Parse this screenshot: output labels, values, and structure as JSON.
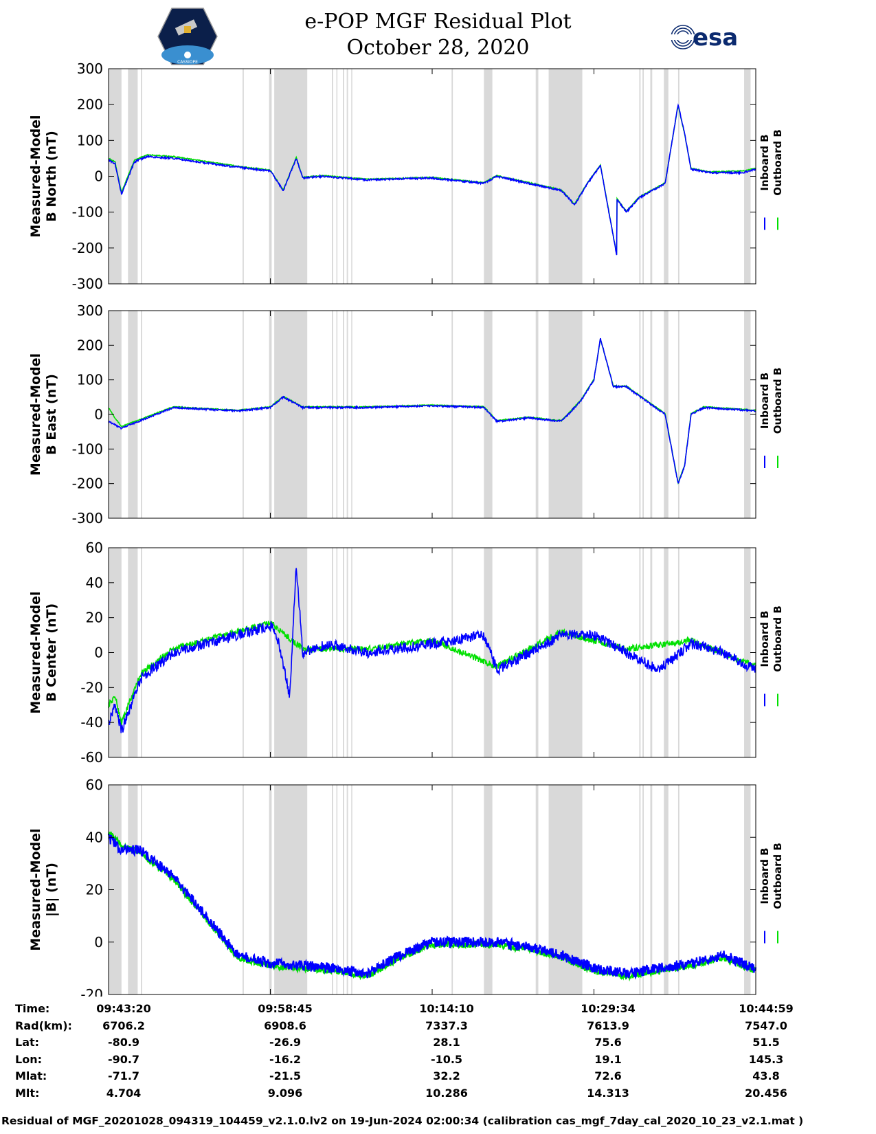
{
  "header": {
    "title_line1": "e-POP MGF Residual Plot",
    "title_line2": "October 28, 2020",
    "logo_left_text": "CASSIOPE",
    "logo_right_text": "esa"
  },
  "colors": {
    "inboard": "#0000ff",
    "outboard": "#00e000",
    "gap": "#d9d9d9"
  },
  "chart_data": [
    {
      "type": "line",
      "name": "b-north",
      "ylabel": [
        "Measured-Model",
        "B North (nT)"
      ],
      "ylim": [
        -300,
        300
      ],
      "yticks": [
        300,
        200,
        100,
        0,
        -100,
        -200,
        -300
      ],
      "legend": [
        "Inboard B",
        "Outboard B"
      ],
      "series": [
        {
          "name": "Inboard B",
          "x": [
            0,
            0.01,
            0.02,
            0.04,
            0.06,
            0.1,
            0.2,
            0.25,
            0.27,
            0.29,
            0.3,
            0.33,
            0.4,
            0.5,
            0.58,
            0.6,
            0.7,
            0.72,
            0.74,
            0.76,
            0.785,
            0.78,
            0.8,
            0.82,
            0.86,
            0.88,
            0.89,
            0.9,
            0.93,
            0.98,
            1
          ],
          "y": [
            45,
            35,
            -50,
            40,
            55,
            50,
            25,
            15,
            -40,
            50,
            -5,
            0,
            -10,
            -5,
            -20,
            0,
            -40,
            -80,
            -20,
            30,
            -220,
            -50,
            -100,
            -60,
            -20,
            200,
            120,
            20,
            10,
            10,
            20
          ]
        },
        {
          "name": "Outboard B",
          "x": [
            0,
            0.01,
            0.02,
            0.04,
            0.06,
            0.1,
            0.2,
            0.25,
            0.27,
            0.29,
            0.3,
            0.33,
            0.4,
            0.5,
            0.58,
            0.6,
            0.7,
            0.72,
            0.74,
            0.76,
            0.785,
            0.78,
            0.8,
            0.82,
            0.86,
            0.88,
            0.89,
            0.9,
            0.93,
            0.98,
            1
          ],
          "y": [
            50,
            40,
            -45,
            45,
            60,
            55,
            28,
            17,
            -38,
            52,
            -3,
            2,
            -8,
            -3,
            -18,
            2,
            -38,
            -78,
            -18,
            32,
            -218,
            -48,
            -98,
            -58,
            -18,
            198,
            118,
            22,
            12,
            15,
            22
          ]
        }
      ]
    },
    {
      "type": "line",
      "name": "b-east",
      "ylabel": [
        "Measured-Model",
        "B East (nT)"
      ],
      "ylim": [
        -300,
        300
      ],
      "yticks": [
        300,
        200,
        100,
        0,
        -100,
        -200,
        -300
      ],
      "legend": [
        "Inboard B",
        "Outboard B"
      ],
      "series": [
        {
          "name": "Inboard B",
          "x": [
            0,
            0.02,
            0.1,
            0.2,
            0.25,
            0.27,
            0.3,
            0.4,
            0.5,
            0.58,
            0.6,
            0.65,
            0.7,
            0.73,
            0.75,
            0.76,
            0.78,
            0.8,
            0.86,
            0.88,
            0.89,
            0.9,
            0.92,
            1
          ],
          "y": [
            -20,
            -40,
            20,
            10,
            20,
            50,
            20,
            20,
            25,
            20,
            -20,
            -10,
            -20,
            40,
            100,
            220,
            80,
            80,
            0,
            -200,
            -150,
            0,
            20,
            10
          ]
        },
        {
          "name": "Outboard B",
          "x": [
            0,
            0.01,
            0.02,
            0.1,
            0.2,
            0.25,
            0.27,
            0.3,
            0.4,
            0.5,
            0.58,
            0.6,
            0.65,
            0.7,
            0.73,
            0.75,
            0.76,
            0.78,
            0.8,
            0.86,
            0.88,
            0.89,
            0.9,
            0.92,
            1
          ],
          "y": [
            20,
            -10,
            -35,
            22,
            12,
            22,
            52,
            22,
            22,
            27,
            22,
            -18,
            -8,
            -18,
            42,
            102,
            218,
            82,
            82,
            2,
            -198,
            -148,
            2,
            22,
            12
          ]
        }
      ]
    },
    {
      "type": "line",
      "name": "b-center",
      "ylabel": [
        "Measured-Model",
        "B Center (nT)"
      ],
      "ylim": [
        -60,
        60
      ],
      "yticks": [
        60,
        40,
        20,
        0,
        -20,
        -40,
        -60
      ],
      "legend": [
        "Inboard B",
        "Outboard B"
      ],
      "series": [
        {
          "name": "Inboard B",
          "x": [
            0,
            0.01,
            0.02,
            0.05,
            0.1,
            0.15,
            0.2,
            0.25,
            0.26,
            0.28,
            0.29,
            0.3,
            0.34,
            0.4,
            0.5,
            0.58,
            0.6,
            0.7,
            0.75,
            0.8,
            0.85,
            0.9,
            0.95,
            1
          ],
          "y": [
            -40,
            -30,
            -45,
            -15,
            0,
            5,
            10,
            15,
            10,
            -25,
            50,
            0,
            5,
            0,
            5,
            10,
            -10,
            10,
            10,
            0,
            -10,
            5,
            0,
            -10
          ]
        },
        {
          "name": "Outboard B",
          "x": [
            0,
            0.01,
            0.02,
            0.05,
            0.1,
            0.15,
            0.2,
            0.25,
            0.3,
            0.4,
            0.5,
            0.6,
            0.7,
            0.8,
            0.9,
            1
          ],
          "y": [
            -30,
            -25,
            -40,
            -12,
            2,
            7,
            12,
            17,
            2,
            2,
            7,
            -8,
            12,
            2,
            7,
            -8
          ]
        }
      ]
    },
    {
      "type": "line",
      "name": "b-magnitude",
      "ylabel": [
        "Measured-Model",
        "|B| (nT)"
      ],
      "ylim": [
        -20,
        60
      ],
      "yticks": [
        60,
        40,
        20,
        0,
        -20
      ],
      "legend": [
        "Inboard B",
        "Outboard B"
      ],
      "series": [
        {
          "name": "Inboard B",
          "x": [
            0,
            0.02,
            0.05,
            0.1,
            0.15,
            0.2,
            0.25,
            0.3,
            0.35,
            0.4,
            0.45,
            0.5,
            0.55,
            0.6,
            0.65,
            0.7,
            0.75,
            0.8,
            0.85,
            0.9,
            0.95,
            1
          ],
          "y": [
            40,
            35,
            35,
            25,
            10,
            -5,
            -8,
            -9,
            -10,
            -12,
            -5,
            0,
            0,
            0,
            -2,
            -5,
            -10,
            -12,
            -10,
            -8,
            -5,
            -10
          ]
        },
        {
          "name": "Outboard B",
          "x": [
            0,
            0.02,
            0.05,
            0.1,
            0.15,
            0.2,
            0.25,
            0.3,
            0.35,
            0.4,
            0.45,
            0.5,
            0.55,
            0.6,
            0.65,
            0.7,
            0.75,
            0.8,
            0.85,
            0.9,
            0.95,
            1
          ],
          "y": [
            42,
            37,
            34,
            24,
            9,
            -6,
            -9,
            -10,
            -11,
            -13,
            -6,
            -1,
            -1,
            -1,
            -3,
            -6,
            -11,
            -13,
            -11,
            -9,
            -6,
            -11
          ]
        }
      ]
    }
  ],
  "gap_bands": [
    [
      0,
      0.02
    ],
    [
      0.03,
      0.045
    ],
    [
      0.05,
      0.052
    ],
    [
      0.207,
      0.209
    ],
    [
      0.248,
      0.252
    ],
    [
      0.256,
      0.307
    ],
    [
      0.345,
      0.347
    ],
    [
      0.352,
      0.353
    ],
    [
      0.362,
      0.364
    ],
    [
      0.368,
      0.37
    ],
    [
      0.375,
      0.376
    ],
    [
      0.53,
      0.532
    ],
    [
      0.58,
      0.593
    ],
    [
      0.66,
      0.664
    ],
    [
      0.68,
      0.732
    ],
    [
      0.82,
      0.822
    ],
    [
      0.825,
      0.827
    ],
    [
      0.837,
      0.84
    ],
    [
      0.858,
      0.865
    ],
    [
      0.88,
      0.882
    ],
    [
      0.982,
      0.992
    ]
  ],
  "footer_table": {
    "row_labels": [
      "Time:",
      "Rad(km):",
      "Lat:",
      "Lon:",
      "Mlat:",
      "Mlt:"
    ],
    "columns": [
      [
        "09:43:20",
        "6706.2",
        "-80.9",
        "-90.7",
        "-71.7",
        "4.704"
      ],
      [
        "09:58:45",
        "6908.6",
        "-26.9",
        "-16.2",
        "-21.5",
        "9.096"
      ],
      [
        "10:14:10",
        "7337.3",
        "28.1",
        "-10.5",
        "32.2",
        "10.286"
      ],
      [
        "10:29:34",
        "7613.9",
        "75.6",
        "19.1",
        "72.6",
        "14.313"
      ],
      [
        "10:44:59",
        "7547.0",
        "51.5",
        "145.3",
        "43.8",
        "20.456"
      ]
    ]
  },
  "footer_text": "Residual of MGF_20201028_094319_104459_v2.1.0.lv2 on 19-Jun-2024 02:00:34 (calibration cas_mgf_7day_cal_2020_10_23_v2.1.mat )"
}
